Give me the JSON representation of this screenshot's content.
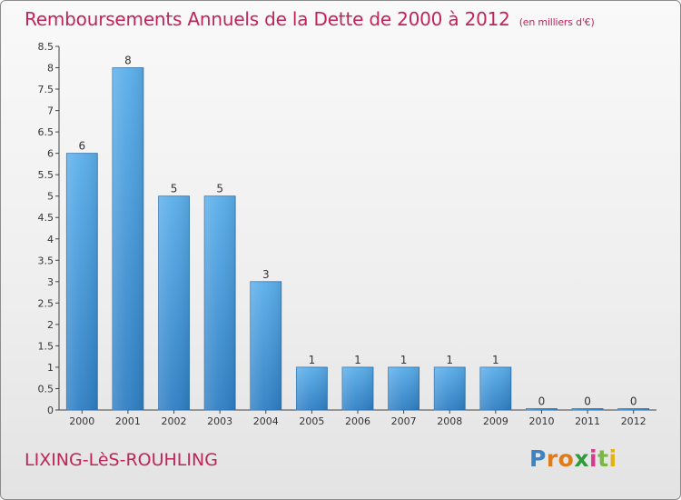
{
  "title": "Remboursements Annuels de la Dette de 2000 à 2012",
  "subtitle": "(en milliers d'€)",
  "commune": "LIXING-LèS-ROUHLING",
  "brand": {
    "letters": [
      "P",
      "r",
      "o",
      "x",
      "i",
      "t",
      "i"
    ],
    "colors": [
      "#3b83c4",
      "#e07b1b",
      "#e07b1b",
      "#2e9a3a",
      "#d23c8b",
      "#7ab648",
      "#e3b314"
    ]
  },
  "colors": {
    "bar": "#3c8fd6",
    "bar_light": "#5aaeea",
    "title": "#c0245a"
  },
  "chart_data": {
    "type": "bar",
    "categories": [
      "2000",
      "2001",
      "2002",
      "2003",
      "2004",
      "2005",
      "2006",
      "2007",
      "2008",
      "2009",
      "2010",
      "2011",
      "2012"
    ],
    "values": [
      6,
      8,
      5,
      5,
      3,
      1,
      1,
      1,
      1,
      1,
      0,
      0,
      0
    ],
    "ylim": [
      0,
      8.5
    ],
    "yticks": [
      "0",
      "0.5",
      "1",
      "1.5",
      "2",
      "2.5",
      "3",
      "3.5",
      "4",
      "4.5",
      "5",
      "5.5",
      "6",
      "6.5",
      "7",
      "7.5",
      "8",
      "8.5"
    ],
    "data_labels": [
      "6",
      "8",
      "5",
      "5",
      "3",
      "1",
      "1",
      "1",
      "1",
      "1",
      "0",
      "0",
      "0"
    ],
    "grid": false,
    "legend": "none"
  }
}
